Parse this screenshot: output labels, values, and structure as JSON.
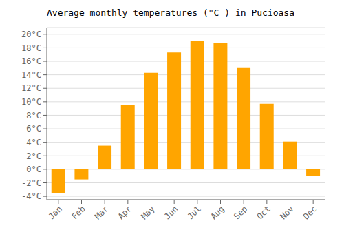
{
  "chart_data": {
    "type": "bar",
    "title": "Average monthly temperatures (°C ) in Pucioasa",
    "categories": [
      "Jan",
      "Feb",
      "Mar",
      "Apr",
      "May",
      "Jun",
      "Jul",
      "Aug",
      "Sep",
      "Oct",
      "Nov",
      "Dec"
    ],
    "values": [
      -3.5,
      -1.5,
      3.5,
      9.5,
      14.3,
      17.3,
      19.0,
      18.7,
      15.0,
      9.7,
      4.1,
      -1.0
    ],
    "color": "#FFA500",
    "ylim": [
      -4.5,
      21
    ],
    "yticks": [
      {
        "value": -4,
        "label": "-4°C"
      },
      {
        "value": -2,
        "label": "-2°C"
      },
      {
        "value": 0,
        "label": "0°C"
      },
      {
        "value": 2,
        "label": "2°C"
      },
      {
        "value": 4,
        "label": "4°C"
      },
      {
        "value": 6,
        "label": "6°C"
      },
      {
        "value": 8,
        "label": "8°C"
      },
      {
        "value": 10,
        "label": "10°C"
      },
      {
        "value": 12,
        "label": "12°C"
      },
      {
        "value": 14,
        "label": "14°C"
      },
      {
        "value": 16,
        "label": "16°C"
      },
      {
        "value": 18,
        "label": "18°C"
      },
      {
        "value": 20,
        "label": "20°C"
      }
    ],
    "grid": true
  }
}
